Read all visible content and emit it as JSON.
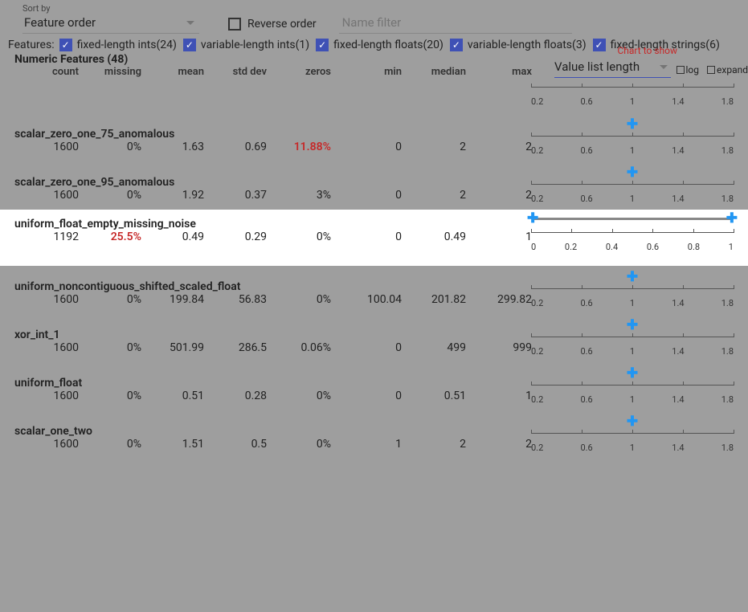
{
  "toolbar": {
    "sort_label": "Sort by",
    "sort_value": "Feature order",
    "reverse_label": "Reverse order",
    "filter_placeholder": "Name filter"
  },
  "feature_filters": {
    "label": "Features:",
    "items": [
      {
        "label": "fixed-length ints(24)",
        "checked": true
      },
      {
        "label": "variable-length ints(1)",
        "checked": true
      },
      {
        "label": "fixed-length floats(20)",
        "checked": true
      },
      {
        "label": "variable-length floats(3)",
        "checked": true
      },
      {
        "label": "fixed-length strings(6)",
        "checked": true
      }
    ]
  },
  "chart_to_show_label": "Chart to show",
  "chart_select": "Value list length",
  "log_label": "log",
  "expand_label": "expand",
  "section_title": "Numeric Features (48)",
  "columns": [
    "count",
    "missing",
    "mean",
    "std dev",
    "zeros",
    "min",
    "median",
    "max"
  ],
  "axis_ticks_default": [
    "0.2",
    "0.6",
    "1",
    "1.4",
    "1.8"
  ],
  "axis_ticks_wide": [
    "0",
    "0.2",
    "0.4",
    "0.6",
    "0.8",
    "1"
  ],
  "features": [
    {
      "name": "scalar_zero_one_75_anomalous",
      "count": "1600",
      "missing": "0%",
      "mean": "1.63",
      "stddev": "0.69",
      "zeros": "11.88%",
      "zeros_red": true,
      "min": "0",
      "median": "2",
      "max": "2",
      "chart": "single",
      "ticks": "default"
    },
    {
      "name": "scalar_zero_one_95_anomalous",
      "count": "1600",
      "missing": "0%",
      "mean": "1.92",
      "stddev": "0.37",
      "zeros": "3%",
      "min": "0",
      "median": "2",
      "max": "2",
      "chart": "single",
      "ticks": "default"
    },
    {
      "name": "uniform_float_empty_missing_noise",
      "count": "1192",
      "missing": "25.5%",
      "missing_red": true,
      "mean": "0.49",
      "stddev": "0.29",
      "zeros": "0%",
      "min": "0",
      "median": "0.49",
      "max": "1",
      "chart": "range",
      "ticks": "wide",
      "highlight": true
    },
    {
      "name": "uniform_noncontiguous_shifted_scaled_float",
      "count": "1600",
      "missing": "0%",
      "mean": "199.84",
      "stddev": "56.83",
      "zeros": "0%",
      "min": "100.04",
      "median": "201.82",
      "max": "299.82",
      "chart": "single",
      "ticks": "default"
    },
    {
      "name": "xor_int_1",
      "count": "1600",
      "missing": "0%",
      "mean": "501.99",
      "stddev": "286.5",
      "zeros": "0.06%",
      "min": "0",
      "median": "499",
      "max": "999",
      "chart": "single",
      "ticks": "default"
    },
    {
      "name": "uniform_float",
      "count": "1600",
      "missing": "0%",
      "mean": "0.51",
      "stddev": "0.28",
      "zeros": "0%",
      "min": "0",
      "median": "0.51",
      "max": "1",
      "chart": "single",
      "ticks": "default"
    },
    {
      "name": "scalar_one_two",
      "count": "1600",
      "missing": "0%",
      "mean": "1.51",
      "stddev": "0.5",
      "zeros": "0%",
      "min": "1",
      "median": "2",
      "max": "2",
      "chart": "single",
      "ticks": "default"
    }
  ]
}
